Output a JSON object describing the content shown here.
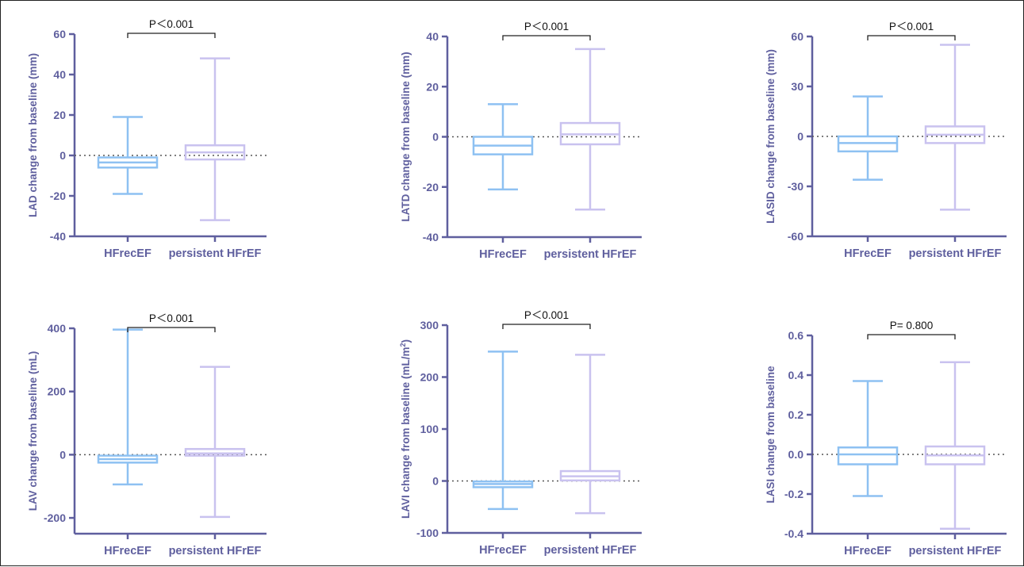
{
  "colors": {
    "axis": "#5f5f9e",
    "hfrecef": "#8ec1f2",
    "persistent_hfref": "#c9c2ef",
    "bracket": "#222222",
    "reference_line": "#555555"
  },
  "chart_data": [
    {
      "type": "box",
      "ylabel": "LAD change from baseline (mm)",
      "ylim": [
        -40,
        60
      ],
      "yticks": [
        -40,
        -20,
        0,
        20,
        40,
        60
      ],
      "y_tick_labels": [
        "-40",
        "-20",
        "0",
        "20",
        "40",
        "60"
      ],
      "categories": [
        "HFrecEF",
        "persistent HFrEF"
      ],
      "series": [
        {
          "name": "HFrecEF",
          "min": -19,
          "q1": -6,
          "median": -3.5,
          "q3": -1,
          "max": 19
        },
        {
          "name": "persistent HFrEF",
          "min": -32,
          "q1": -2,
          "median": 1.5,
          "q3": 5,
          "max": 48
        }
      ],
      "reference_line": 0,
      "annotation": "P＜0.001"
    },
    {
      "type": "box",
      "ylabel": "LATD change from baseline (mm)",
      "ylim": [
        -40,
        40
      ],
      "yticks": [
        -40,
        -20,
        0,
        20,
        40
      ],
      "y_tick_labels": [
        "-40",
        "-20",
        "0",
        "20",
        "40"
      ],
      "categories": [
        "HFrecEF",
        "persistent HFrEF"
      ],
      "series": [
        {
          "name": "HFrecEF",
          "min": -21,
          "q1": -7,
          "median": -3.5,
          "q3": 0,
          "max": 13
        },
        {
          "name": "persistent HFrEF",
          "min": -29,
          "q1": -3,
          "median": 1,
          "q3": 5.5,
          "max": 35
        }
      ],
      "reference_line": 0,
      "annotation": "P＜0.001"
    },
    {
      "type": "box",
      "ylabel": "LASID change from baseline (mm)",
      "ylim": [
        -60,
        60
      ],
      "yticks": [
        -60,
        -30,
        0,
        30,
        60
      ],
      "y_tick_labels": [
        "-60",
        "-30",
        "0",
        "30",
        "60"
      ],
      "categories": [
        "HFrecEF",
        "persistent HFrEF"
      ],
      "series": [
        {
          "name": "HFrecEF",
          "min": -26,
          "q1": -9,
          "median": -4,
          "q3": 0,
          "max": 24
        },
        {
          "name": "persistent HFrEF",
          "min": -44,
          "q1": -4,
          "median": 1,
          "q3": 6,
          "max": 55
        }
      ],
      "reference_line": 0,
      "annotation": "P＜0.001"
    },
    {
      "type": "box",
      "ylabel": "LAV change from baseline (mL)",
      "ylim": [
        -250,
        400
      ],
      "yticks": [
        -200,
        0,
        200,
        400
      ],
      "y_tick_labels": [
        "-200",
        "0",
        "200",
        "400"
      ],
      "categories": [
        "HFrecEF",
        "persistent HFrEF"
      ],
      "series": [
        {
          "name": "HFrecEF",
          "min": -94,
          "q1": -25,
          "median": -14,
          "q3": -3,
          "max": 396
        },
        {
          "name": "persistent HFrEF",
          "min": -197,
          "q1": -3,
          "median": 4,
          "q3": 18,
          "max": 278
        }
      ],
      "reference_line": 0,
      "annotation": "P＜0.001"
    },
    {
      "type": "box",
      "ylabel_parts": [
        "LAVI change from baseline (mL/m",
        "2",
        ")"
      ],
      "ylim": [
        -100,
        300
      ],
      "yticks": [
        -100,
        0,
        100,
        200,
        300
      ],
      "y_tick_labels": [
        "-100",
        "0",
        "100",
        "200",
        "300"
      ],
      "categories": [
        "HFrecEF",
        "persistent HFrEF"
      ],
      "series": [
        {
          "name": "HFrecEF",
          "min": -54,
          "q1": -12,
          "median": -6,
          "q3": -1,
          "max": 249
        },
        {
          "name": "persistent HFrEF",
          "min": -62,
          "q1": 1,
          "median": 9,
          "q3": 19,
          "max": 243
        }
      ],
      "reference_line": 0,
      "annotation": "P＜0.001"
    },
    {
      "type": "box",
      "ylabel": "LASI change from baseline",
      "ylim": [
        -0.4,
        0.6
      ],
      "yticks": [
        -0.4,
        -0.2,
        0,
        0.2,
        0.4,
        0.6
      ],
      "y_tick_labels": [
        "-0.4",
        "-0.2",
        "0.0",
        "0.2",
        "0.4",
        "0.6"
      ],
      "categories": [
        "HFrecEF",
        "persistent HFrEF"
      ],
      "series": [
        {
          "name": "HFrecEF",
          "min": -0.21,
          "q1": -0.05,
          "median": 0.0,
          "q3": 0.035,
          "max": 0.37
        },
        {
          "name": "persistent HFrEF",
          "min": -0.375,
          "q1": -0.05,
          "median": -0.005,
          "q3": 0.04,
          "max": 0.465
        }
      ],
      "reference_line": 0,
      "annotation": "P= 0.800"
    }
  ]
}
